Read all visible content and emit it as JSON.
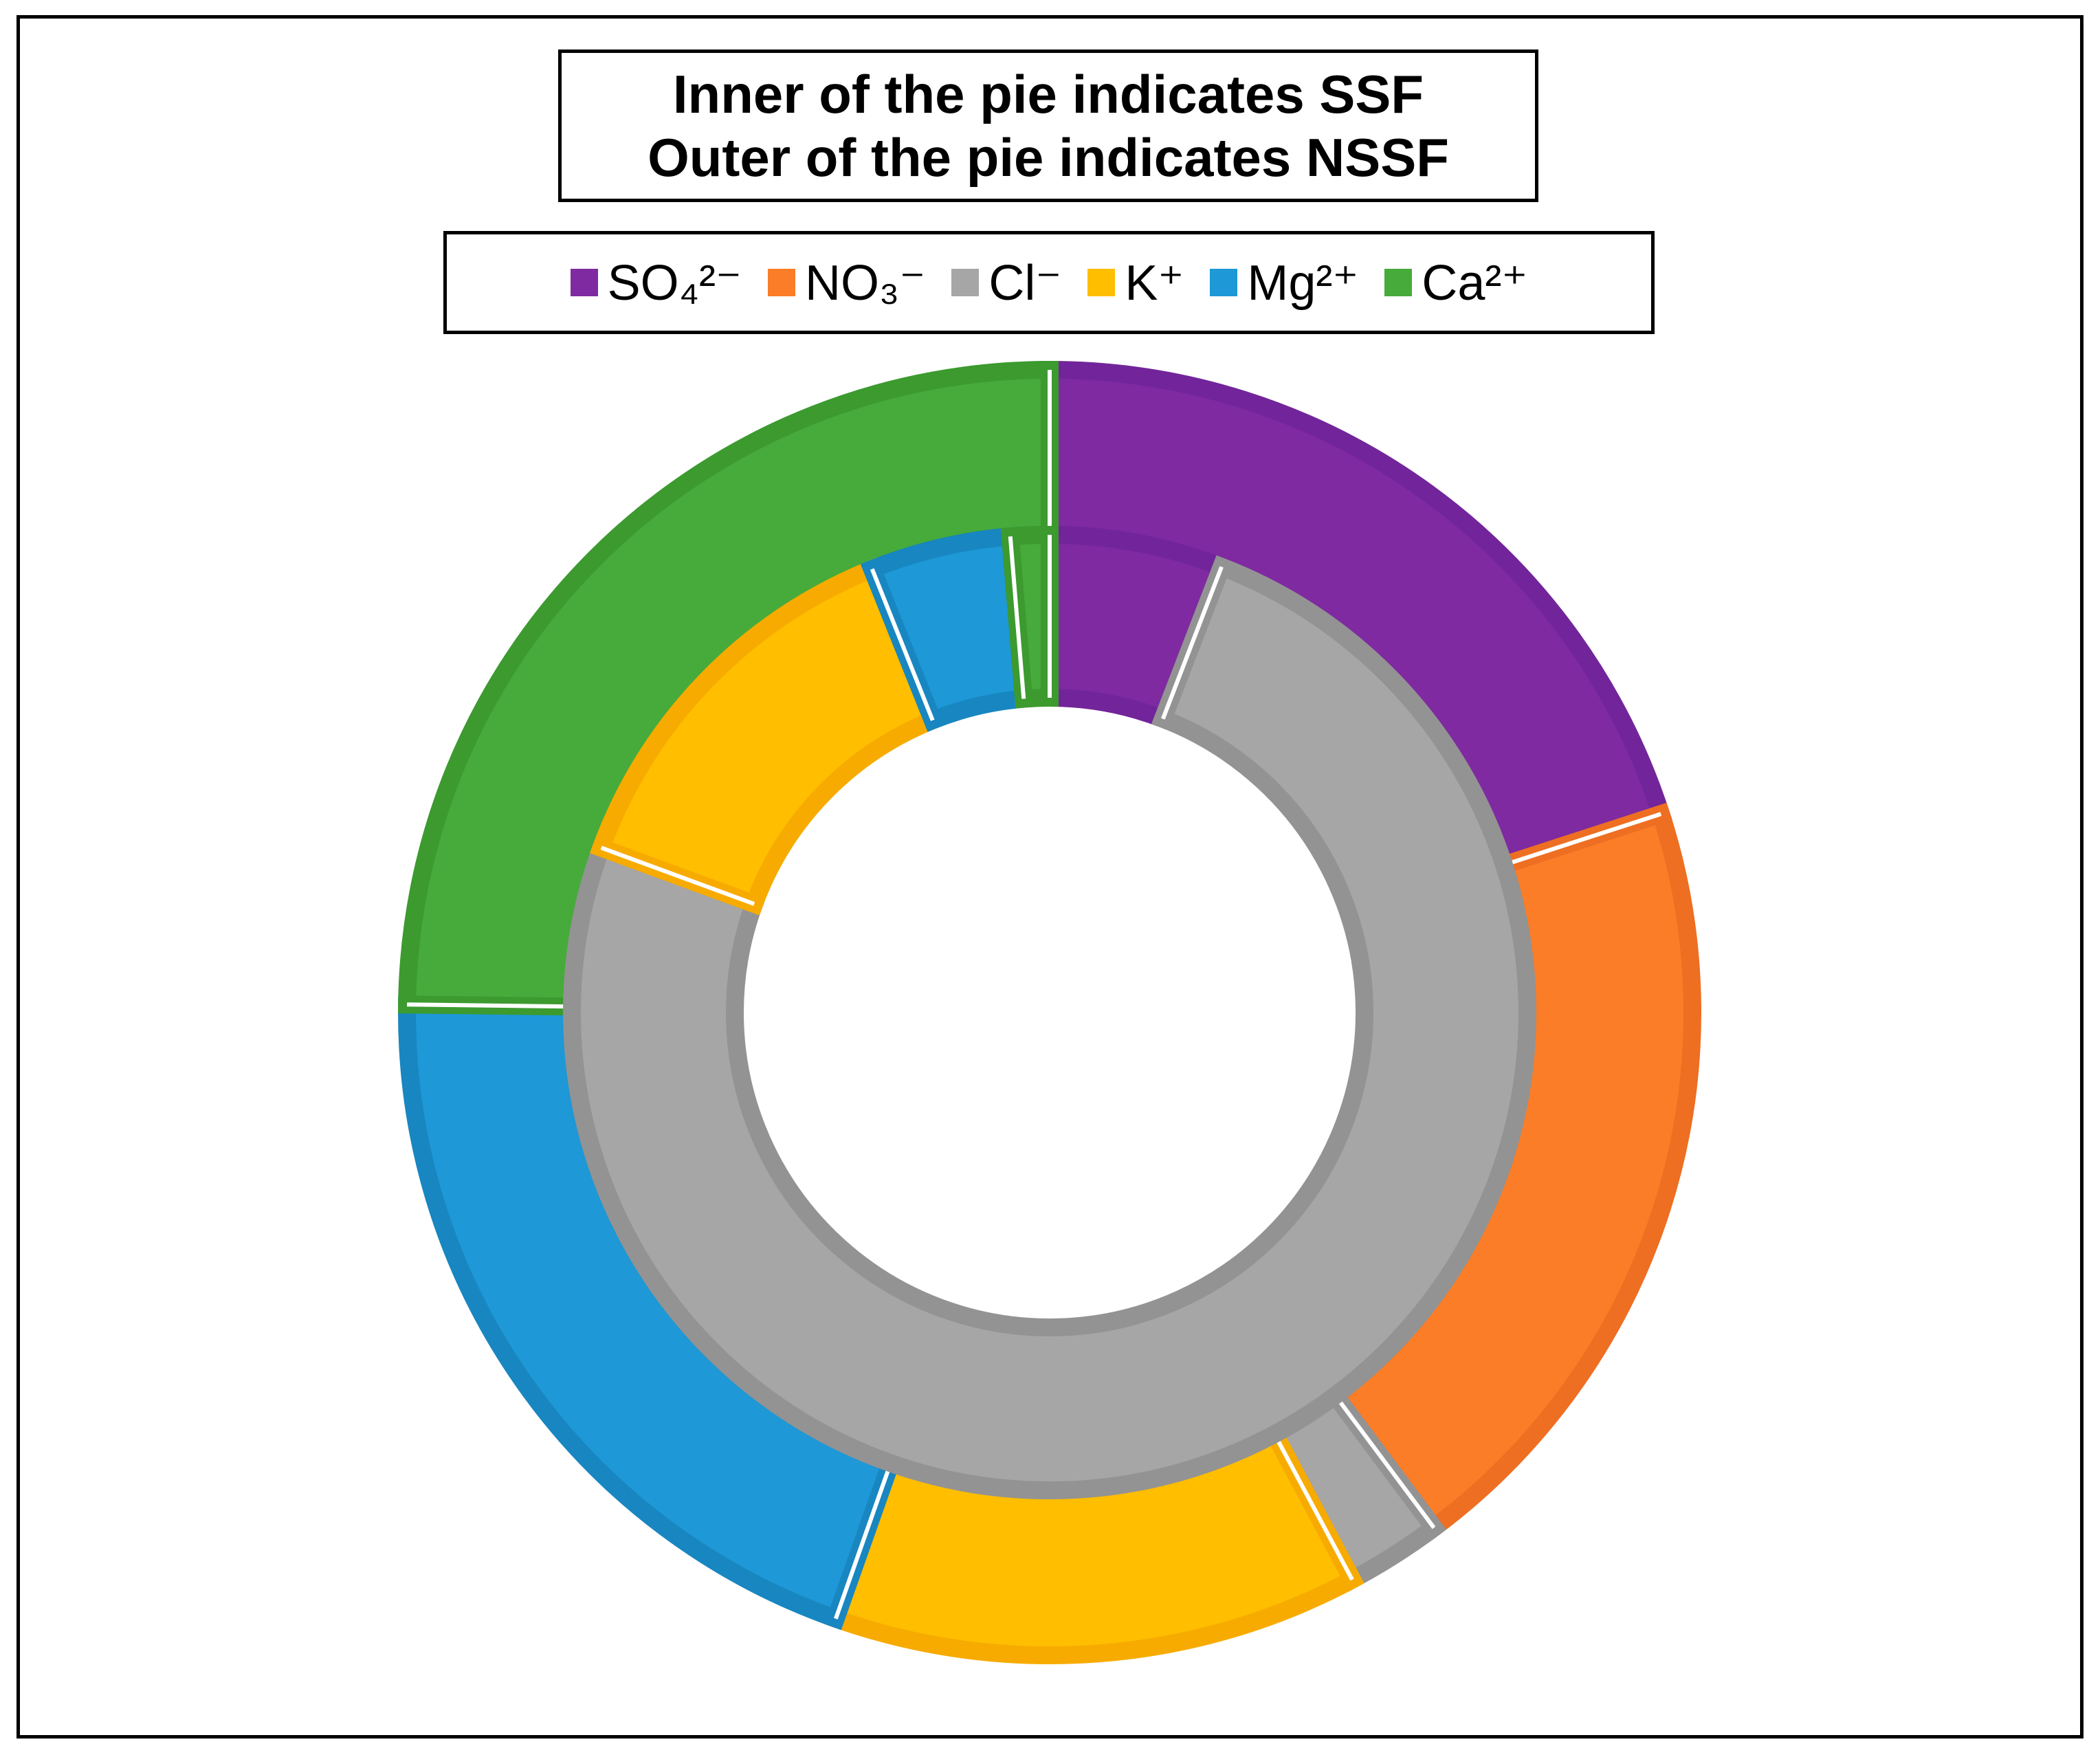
{
  "chart_data": {
    "type": "donut",
    "title_lines": [
      "Inner of the pie indicates SSF",
      "Outer of the pie indicates NSSF"
    ],
    "categories": [
      "SO₄²⁻",
      "NO₃⁻",
      "Cl⁻",
      "K⁺",
      "Mg²⁺",
      "Ca²⁺"
    ],
    "colors": [
      "#7F2AA0",
      "#FB7D27",
      "#A6A6A6",
      "#FFBE00",
      "#1E98D6",
      "#46AB3A"
    ],
    "border_colors": [
      "#72259A",
      "#EE6E22",
      "#939393",
      "#F7AB00",
      "#1886C0",
      "#3C9A2F"
    ],
    "series": [
      {
        "ring": "inner",
        "values": [
          5.8,
          0.0,
          74.0,
          13.2,
          4.7,
          1.3
        ]
      },
      {
        "ring": "outer",
        "values": [
          20.0,
          19.8,
          2.4,
          13.2,
          19.8,
          24.8
        ]
      }
    ],
    "legend_position": "top"
  }
}
